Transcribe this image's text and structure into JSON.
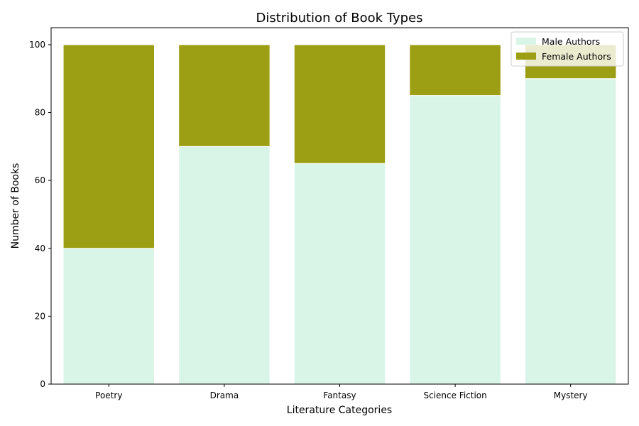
{
  "chart_data": {
    "type": "bar",
    "stacked": true,
    "title": "Distribution of Book Types",
    "xlabel": "Literature Categories",
    "ylabel": "Number of Books",
    "categories": [
      "Poetry",
      "Drama",
      "Fantasy",
      "Science Fiction",
      "Mystery"
    ],
    "series": [
      {
        "name": "Male Authors",
        "values": [
          40,
          70,
          65,
          85,
          90
        ],
        "color": "#d9f5e8"
      },
      {
        "name": "Female Authors",
        "values": [
          60,
          30,
          35,
          15,
          10
        ],
        "color": "#9c9e13"
      }
    ],
    "ylim": [
      0,
      105
    ],
    "yticks": [
      0,
      20,
      40,
      60,
      80,
      100
    ],
    "grid": false,
    "legend_position": "top-right"
  }
}
